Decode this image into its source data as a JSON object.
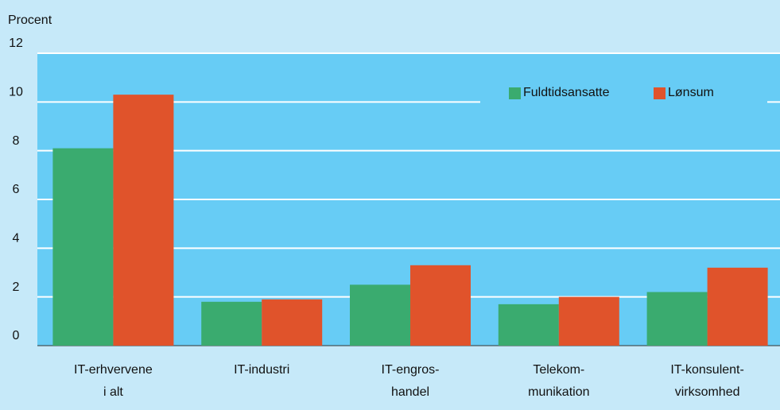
{
  "chart_data": {
    "type": "bar",
    "y_label": "Procent",
    "categories": [
      [
        "IT-erhvervene",
        "i alt"
      ],
      [
        "IT-industri"
      ],
      [
        "IT-engros-",
        "handel"
      ],
      [
        "Telekom-",
        "munikation"
      ],
      [
        "IT-konsulent-",
        "virksomhed"
      ]
    ],
    "series": [
      {
        "name": "Fuldtidsansatte",
        "color": "#3aab6f",
        "values": [
          8.1,
          1.8,
          2.5,
          1.7,
          2.2
        ]
      },
      {
        "name": "Lønsum",
        "color": "#e0532b",
        "values": [
          10.3,
          1.9,
          3.3,
          2.0,
          3.2
        ]
      }
    ],
    "ylim": [
      0,
      12
    ],
    "yticks": [
      0,
      2,
      4,
      6,
      8,
      10,
      12
    ],
    "grid": true,
    "legend": "upper right"
  }
}
